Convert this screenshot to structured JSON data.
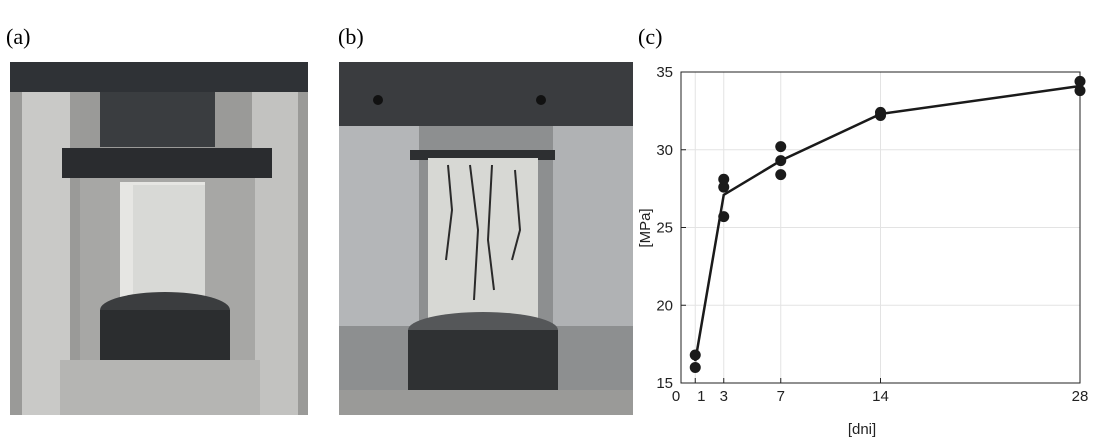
{
  "panel_labels": [
    "(a)",
    "(b)",
    "(c)"
  ],
  "chart_data": {
    "type": "scatter",
    "xlabel": "[dni]",
    "ylabel": "[MPa]",
    "xlim": [
      0,
      28
    ],
    "ylim": [
      15,
      35
    ],
    "xticks": [
      0,
      1,
      3,
      7,
      14,
      28
    ],
    "yticks": [
      15,
      20,
      25,
      30,
      35
    ],
    "grid": true,
    "series": [
      {
        "type": "scatter",
        "color": "#1a1a1a",
        "x": [
          1,
          1,
          3,
          3,
          3,
          7,
          7,
          7,
          14,
          14,
          28,
          28
        ],
        "values": [
          16.0,
          16.8,
          25.7,
          27.6,
          28.1,
          28.4,
          29.3,
          30.2,
          32.2,
          32.4,
          33.8,
          34.4
        ]
      },
      {
        "type": "line",
        "color": "#1a1a1a",
        "x": [
          1,
          3,
          7,
          14,
          28
        ],
        "values": [
          16.4,
          27.1,
          29.3,
          32.3,
          34.1
        ]
      }
    ]
  }
}
